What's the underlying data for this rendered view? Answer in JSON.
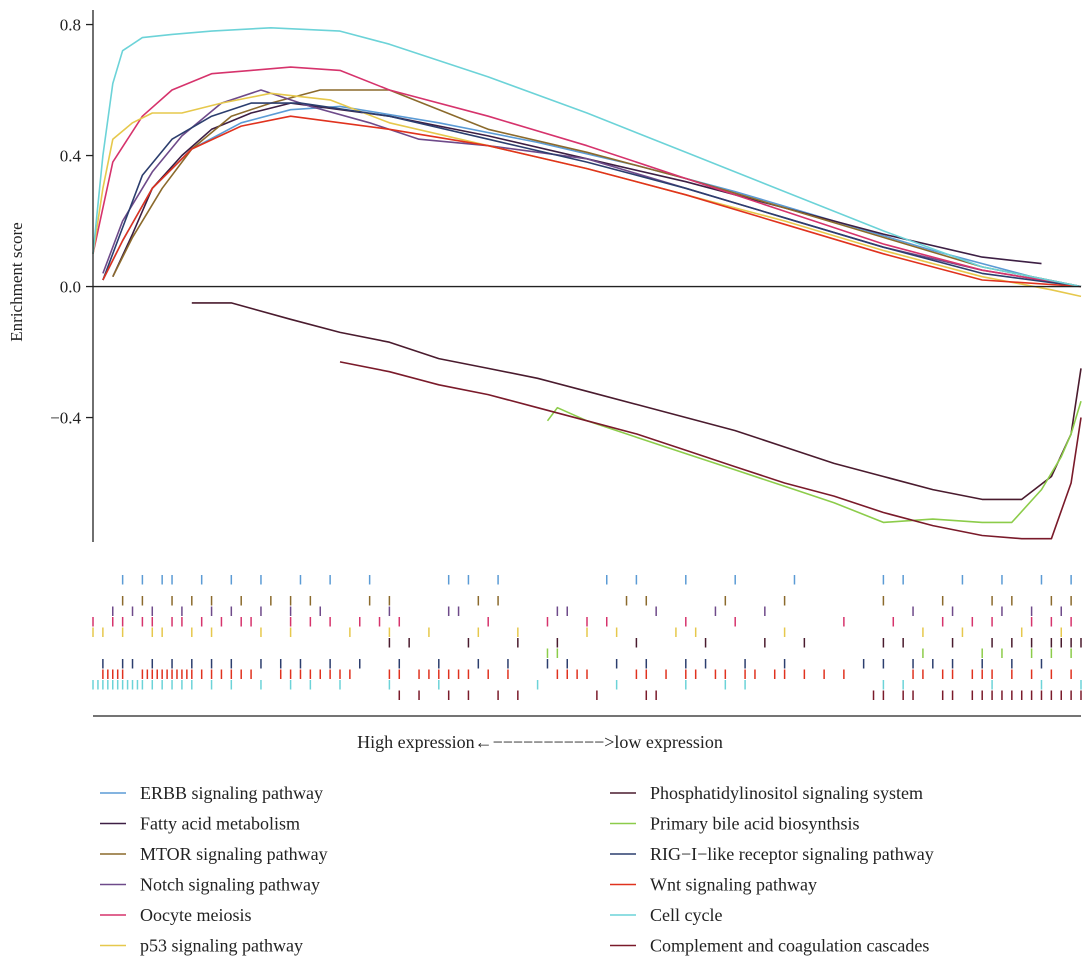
{
  "chart_data": {
    "type": "line",
    "title": "",
    "ylabel": "Enrichment score",
    "xlabel": "High expression←−−−−−−−−−−−>low expression",
    "ylim": [
      -0.78,
      0.82
    ],
    "yticks": [
      0.8,
      0.4,
      0.0,
      -0.4
    ],
    "ytick_labels": [
      "0.8",
      "0.4",
      "0.0",
      "−0.4"
    ],
    "xlim": [
      0,
      1
    ],
    "grid": false,
    "legend": "bottom, two columns",
    "series": [
      {
        "name": "ERBB signaling pathway",
        "color": "#5b9bd5",
        "x": [
          0.01,
          0.03,
          0.06,
          0.1,
          0.15,
          0.2,
          0.25,
          0.35,
          0.45,
          0.55,
          0.65,
          0.75,
          0.85,
          0.95,
          1.0
        ],
        "y": [
          0.02,
          0.14,
          0.3,
          0.42,
          0.5,
          0.54,
          0.55,
          0.5,
          0.44,
          0.37,
          0.29,
          0.2,
          0.11,
          0.03,
          0.0
        ],
        "ticks": [
          0.03,
          0.05,
          0.07,
          0.08,
          0.11,
          0.14,
          0.17,
          0.21,
          0.24,
          0.28,
          0.36,
          0.38,
          0.41,
          0.52,
          0.55,
          0.6,
          0.65,
          0.71,
          0.8,
          0.82,
          0.88,
          0.92,
          0.96,
          0.99
        ]
      },
      {
        "name": "Fatty acid metabolism",
        "color": "#3d1f44",
        "x": [
          0.02,
          0.04,
          0.06,
          0.09,
          0.12,
          0.16,
          0.2,
          0.3,
          0.4,
          0.5,
          0.6,
          0.7,
          0.8,
          0.9,
          0.96
        ],
        "y": [
          0.03,
          0.16,
          0.3,
          0.4,
          0.48,
          0.53,
          0.56,
          0.52,
          0.46,
          0.39,
          0.32,
          0.24,
          0.16,
          0.09,
          0.07
        ]
      },
      {
        "name": "MTOR signaling pathway",
        "color": "#8b6a2c",
        "x": [
          0.02,
          0.04,
          0.07,
          0.1,
          0.14,
          0.18,
          0.23,
          0.3,
          0.4,
          0.5,
          0.6,
          0.7,
          0.8,
          0.9,
          1.0
        ],
        "y": [
          0.03,
          0.15,
          0.3,
          0.42,
          0.52,
          0.56,
          0.6,
          0.6,
          0.48,
          0.41,
          0.33,
          0.24,
          0.15,
          0.06,
          0.0
        ],
        "ticks": [
          0.03,
          0.05,
          0.08,
          0.1,
          0.12,
          0.15,
          0.18,
          0.2,
          0.22,
          0.28,
          0.3,
          0.39,
          0.41,
          0.54,
          0.56,
          0.64,
          0.7,
          0.8,
          0.86,
          0.91,
          0.93,
          0.97,
          0.99
        ]
      },
      {
        "name": "Notch signaling pathway",
        "color": "#6e4a8a",
        "x": [
          0.01,
          0.03,
          0.06,
          0.09,
          0.13,
          0.17,
          0.22,
          0.28,
          0.33,
          0.4,
          0.5,
          0.6,
          0.7,
          0.8,
          0.9,
          1.0
        ],
        "y": [
          0.04,
          0.2,
          0.35,
          0.46,
          0.56,
          0.6,
          0.55,
          0.5,
          0.45,
          0.43,
          0.39,
          0.3,
          0.21,
          0.12,
          0.05,
          0.0
        ],
        "ticks": [
          0.02,
          0.04,
          0.06,
          0.09,
          0.12,
          0.14,
          0.17,
          0.2,
          0.23,
          0.3,
          0.36,
          0.37,
          0.47,
          0.48,
          0.57,
          0.63,
          0.68,
          0.83,
          0.87,
          0.92,
          0.95,
          0.98
        ]
      },
      {
        "name": "Oocyte meiosis",
        "color": "#d6336c",
        "x": [
          0.0,
          0.02,
          0.05,
          0.08,
          0.12,
          0.16,
          0.2,
          0.25,
          0.3,
          0.4,
          0.5,
          0.6,
          0.7,
          0.8,
          0.9,
          1.0
        ],
        "y": [
          0.1,
          0.38,
          0.52,
          0.6,
          0.65,
          0.66,
          0.67,
          0.66,
          0.6,
          0.52,
          0.43,
          0.33,
          0.23,
          0.13,
          0.05,
          0.0
        ],
        "ticks": [
          0.0,
          0.02,
          0.03,
          0.05,
          0.06,
          0.08,
          0.09,
          0.11,
          0.13,
          0.15,
          0.16,
          0.2,
          0.22,
          0.24,
          0.27,
          0.29,
          0.31,
          0.4,
          0.46,
          0.5,
          0.52,
          0.6,
          0.65,
          0.76,
          0.81,
          0.86,
          0.89,
          0.91,
          0.95,
          0.97,
          0.99
        ]
      },
      {
        "name": "p53 signaling pathway",
        "color": "#e6c84c",
        "x": [
          0.0,
          0.01,
          0.02,
          0.04,
          0.06,
          0.09,
          0.13,
          0.18,
          0.24,
          0.3,
          0.4,
          0.5,
          0.6,
          0.7,
          0.8,
          0.9,
          0.97,
          1.0
        ],
        "y": [
          0.1,
          0.3,
          0.45,
          0.5,
          0.53,
          0.53,
          0.56,
          0.59,
          0.57,
          0.5,
          0.43,
          0.36,
          0.28,
          0.2,
          0.11,
          0.03,
          -0.01,
          -0.03
        ],
        "ticks": [
          0.0,
          0.01,
          0.03,
          0.06,
          0.07,
          0.1,
          0.12,
          0.17,
          0.2,
          0.26,
          0.3,
          0.34,
          0.39,
          0.43,
          0.5,
          0.53,
          0.59,
          0.61,
          0.7,
          0.84,
          0.88,
          0.94,
          0.98
        ]
      },
      {
        "name": "Phosphatidylinositol signaling system",
        "color": "#4a1b2e",
        "x": [
          0.1,
          0.14,
          0.2,
          0.25,
          0.3,
          0.35,
          0.4,
          0.45,
          0.5,
          0.55,
          0.6,
          0.65,
          0.7,
          0.75,
          0.8,
          0.85,
          0.9,
          0.94,
          0.97,
          0.99,
          1.0
        ],
        "y": [
          -0.05,
          -0.05,
          -0.1,
          -0.14,
          -0.17,
          -0.22,
          -0.25,
          -0.28,
          -0.32,
          -0.36,
          -0.4,
          -0.44,
          -0.49,
          -0.54,
          -0.58,
          -0.62,
          -0.65,
          -0.65,
          -0.58,
          -0.45,
          -0.25
        ],
        "ticks": [
          0.3,
          0.32,
          0.38,
          0.43,
          0.47,
          0.55,
          0.62,
          0.68,
          0.72,
          0.8,
          0.82,
          0.87,
          0.91,
          0.93,
          0.95,
          0.97,
          0.98,
          0.99,
          1.0
        ]
      },
      {
        "name": "Primary bile acid biosynthsis",
        "color": "#8ccc4a",
        "x": [
          0.46,
          0.47,
          0.5,
          0.55,
          0.6,
          0.65,
          0.7,
          0.75,
          0.8,
          0.85,
          0.9,
          0.93,
          0.96,
          0.98,
          0.99,
          1.0
        ],
        "y": [
          -0.41,
          -0.37,
          -0.41,
          -0.46,
          -0.51,
          -0.56,
          -0.61,
          -0.66,
          -0.72,
          -0.71,
          -0.72,
          -0.72,
          -0.62,
          -0.52,
          -0.45,
          -0.35
        ],
        "ticks": [
          0.46,
          0.47,
          0.84,
          0.9,
          0.92,
          0.95,
          0.97,
          0.99
        ]
      },
      {
        "name": "RIG−I−like receptor signaling pathway",
        "color": "#2c3e6e",
        "x": [
          0.01,
          0.03,
          0.05,
          0.08,
          0.12,
          0.16,
          0.21,
          0.3,
          0.4,
          0.5,
          0.6,
          0.7,
          0.8,
          0.9,
          1.0
        ],
        "y": [
          0.02,
          0.18,
          0.34,
          0.45,
          0.52,
          0.56,
          0.56,
          0.52,
          0.45,
          0.38,
          0.3,
          0.21,
          0.12,
          0.04,
          0.0
        ],
        "ticks": [
          0.01,
          0.03,
          0.04,
          0.06,
          0.08,
          0.1,
          0.12,
          0.14,
          0.17,
          0.19,
          0.21,
          0.24,
          0.27,
          0.31,
          0.35,
          0.39,
          0.42,
          0.46,
          0.48,
          0.53,
          0.56,
          0.6,
          0.62,
          0.66,
          0.7,
          0.78,
          0.8,
          0.83,
          0.85,
          0.87,
          0.9,
          0.93,
          0.96
        ]
      },
      {
        "name": "Wnt signaling pathway",
        "color": "#e0321e",
        "x": [
          0.01,
          0.03,
          0.06,
          0.1,
          0.15,
          0.2,
          0.3,
          0.4,
          0.5,
          0.6,
          0.7,
          0.8,
          0.9,
          1.0
        ],
        "y": [
          0.02,
          0.14,
          0.3,
          0.42,
          0.49,
          0.52,
          0.48,
          0.43,
          0.36,
          0.28,
          0.19,
          0.1,
          0.02,
          0.0
        ],
        "ticks": [
          0.01,
          0.015,
          0.02,
          0.025,
          0.03,
          0.05,
          0.055,
          0.06,
          0.065,
          0.07,
          0.075,
          0.08,
          0.085,
          0.09,
          0.095,
          0.1,
          0.11,
          0.12,
          0.13,
          0.14,
          0.15,
          0.16,
          0.19,
          0.2,
          0.21,
          0.22,
          0.23,
          0.24,
          0.25,
          0.26,
          0.3,
          0.31,
          0.33,
          0.34,
          0.35,
          0.36,
          0.37,
          0.38,
          0.4,
          0.42,
          0.47,
          0.48,
          0.49,
          0.5,
          0.55,
          0.56,
          0.58,
          0.6,
          0.61,
          0.63,
          0.64,
          0.66,
          0.67,
          0.69,
          0.7,
          0.72,
          0.74,
          0.76,
          0.83,
          0.84,
          0.86,
          0.87,
          0.89,
          0.9,
          0.91,
          0.93,
          0.95,
          0.97,
          0.99
        ]
      },
      {
        "name": "Cell cycle",
        "color": "#6cd3d8",
        "x": [
          0.0,
          0.01,
          0.02,
          0.03,
          0.05,
          0.08,
          0.12,
          0.18,
          0.25,
          0.3,
          0.4,
          0.5,
          0.6,
          0.7,
          0.8,
          0.9,
          1.0
        ],
        "y": [
          0.1,
          0.4,
          0.62,
          0.72,
          0.76,
          0.77,
          0.78,
          0.79,
          0.78,
          0.74,
          0.64,
          0.53,
          0.41,
          0.29,
          0.17,
          0.06,
          0.0
        ],
        "ticks": [
          0.0,
          0.005,
          0.01,
          0.015,
          0.02,
          0.025,
          0.03,
          0.035,
          0.04,
          0.045,
          0.05,
          0.06,
          0.07,
          0.08,
          0.09,
          0.1,
          0.12,
          0.14,
          0.17,
          0.2,
          0.22,
          0.25,
          0.3,
          0.35,
          0.45,
          0.53,
          0.6,
          0.64,
          0.66,
          0.8,
          0.82,
          0.91,
          0.96,
          1.0
        ]
      },
      {
        "name": "Complement and coagulation cascades",
        "color": "#7a1a2a",
        "x": [
          0.25,
          0.3,
          0.35,
          0.4,
          0.45,
          0.5,
          0.55,
          0.6,
          0.65,
          0.7,
          0.75,
          0.8,
          0.85,
          0.9,
          0.94,
          0.97,
          0.99,
          1.0
        ],
        "y": [
          -0.23,
          -0.26,
          -0.3,
          -0.33,
          -0.37,
          -0.41,
          -0.45,
          -0.5,
          -0.55,
          -0.6,
          -0.64,
          -0.69,
          -0.73,
          -0.76,
          -0.77,
          -0.77,
          -0.6,
          -0.4
        ],
        "ticks": [
          0.31,
          0.33,
          0.36,
          0.38,
          0.41,
          0.43,
          0.51,
          0.56,
          0.57,
          0.79,
          0.8,
          0.82,
          0.83,
          0.86,
          0.87,
          0.89,
          0.9,
          0.91,
          0.92,
          0.93,
          0.94,
          0.95,
          0.96,
          0.97,
          0.98,
          0.99,
          1.0
        ]
      }
    ]
  }
}
